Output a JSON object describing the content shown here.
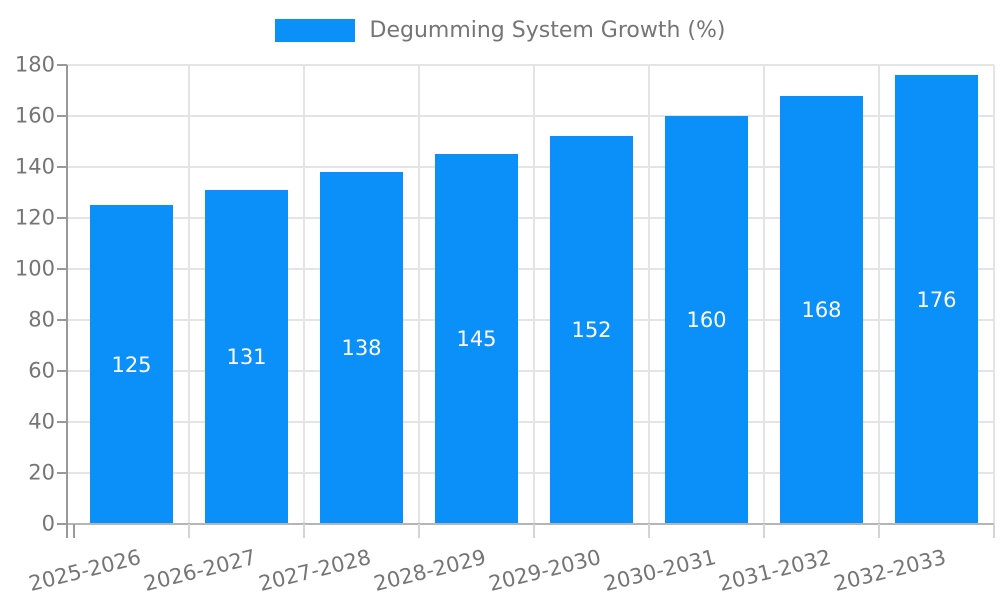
{
  "chart_data": {
    "type": "bar",
    "title": "Degumming System Growth (%)",
    "legend": {
      "position": "top",
      "label": "Degumming System Growth (%)"
    },
    "categories": [
      "2025-2026",
      "2026-2027",
      "2027-2028",
      "2028-2029",
      "2029-2030",
      "2030-2031",
      "2031-2032",
      "2032-2033"
    ],
    "series": [
      {
        "name": "Degumming System Growth (%)",
        "values": [
          125,
          131,
          138,
          145,
          152,
          160,
          168,
          176
        ]
      }
    ],
    "value_labels": [
      125,
      131,
      138,
      145,
      152,
      160,
      168,
      176
    ],
    "value_labels_position": "center-inside",
    "xlabel": "",
    "ylabel": "",
    "ylim": [
      0,
      180
    ],
    "ytick_step": 20,
    "ytick_labels": [
      "0",
      "20",
      "40",
      "60",
      "80",
      "100",
      "120",
      "140",
      "160",
      "180"
    ],
    "grid": true,
    "x_label_rotation_deg": -14,
    "colors": {
      "bar": "#0b90fa",
      "value_label_text": "#ffffff",
      "axis_text": "#757575",
      "gridline": "#e4e4e4",
      "axis_line": "#999999",
      "zero_line": "#b5b5b5",
      "x_tick": "#d4d4d4",
      "background": "#ffffff"
    }
  }
}
